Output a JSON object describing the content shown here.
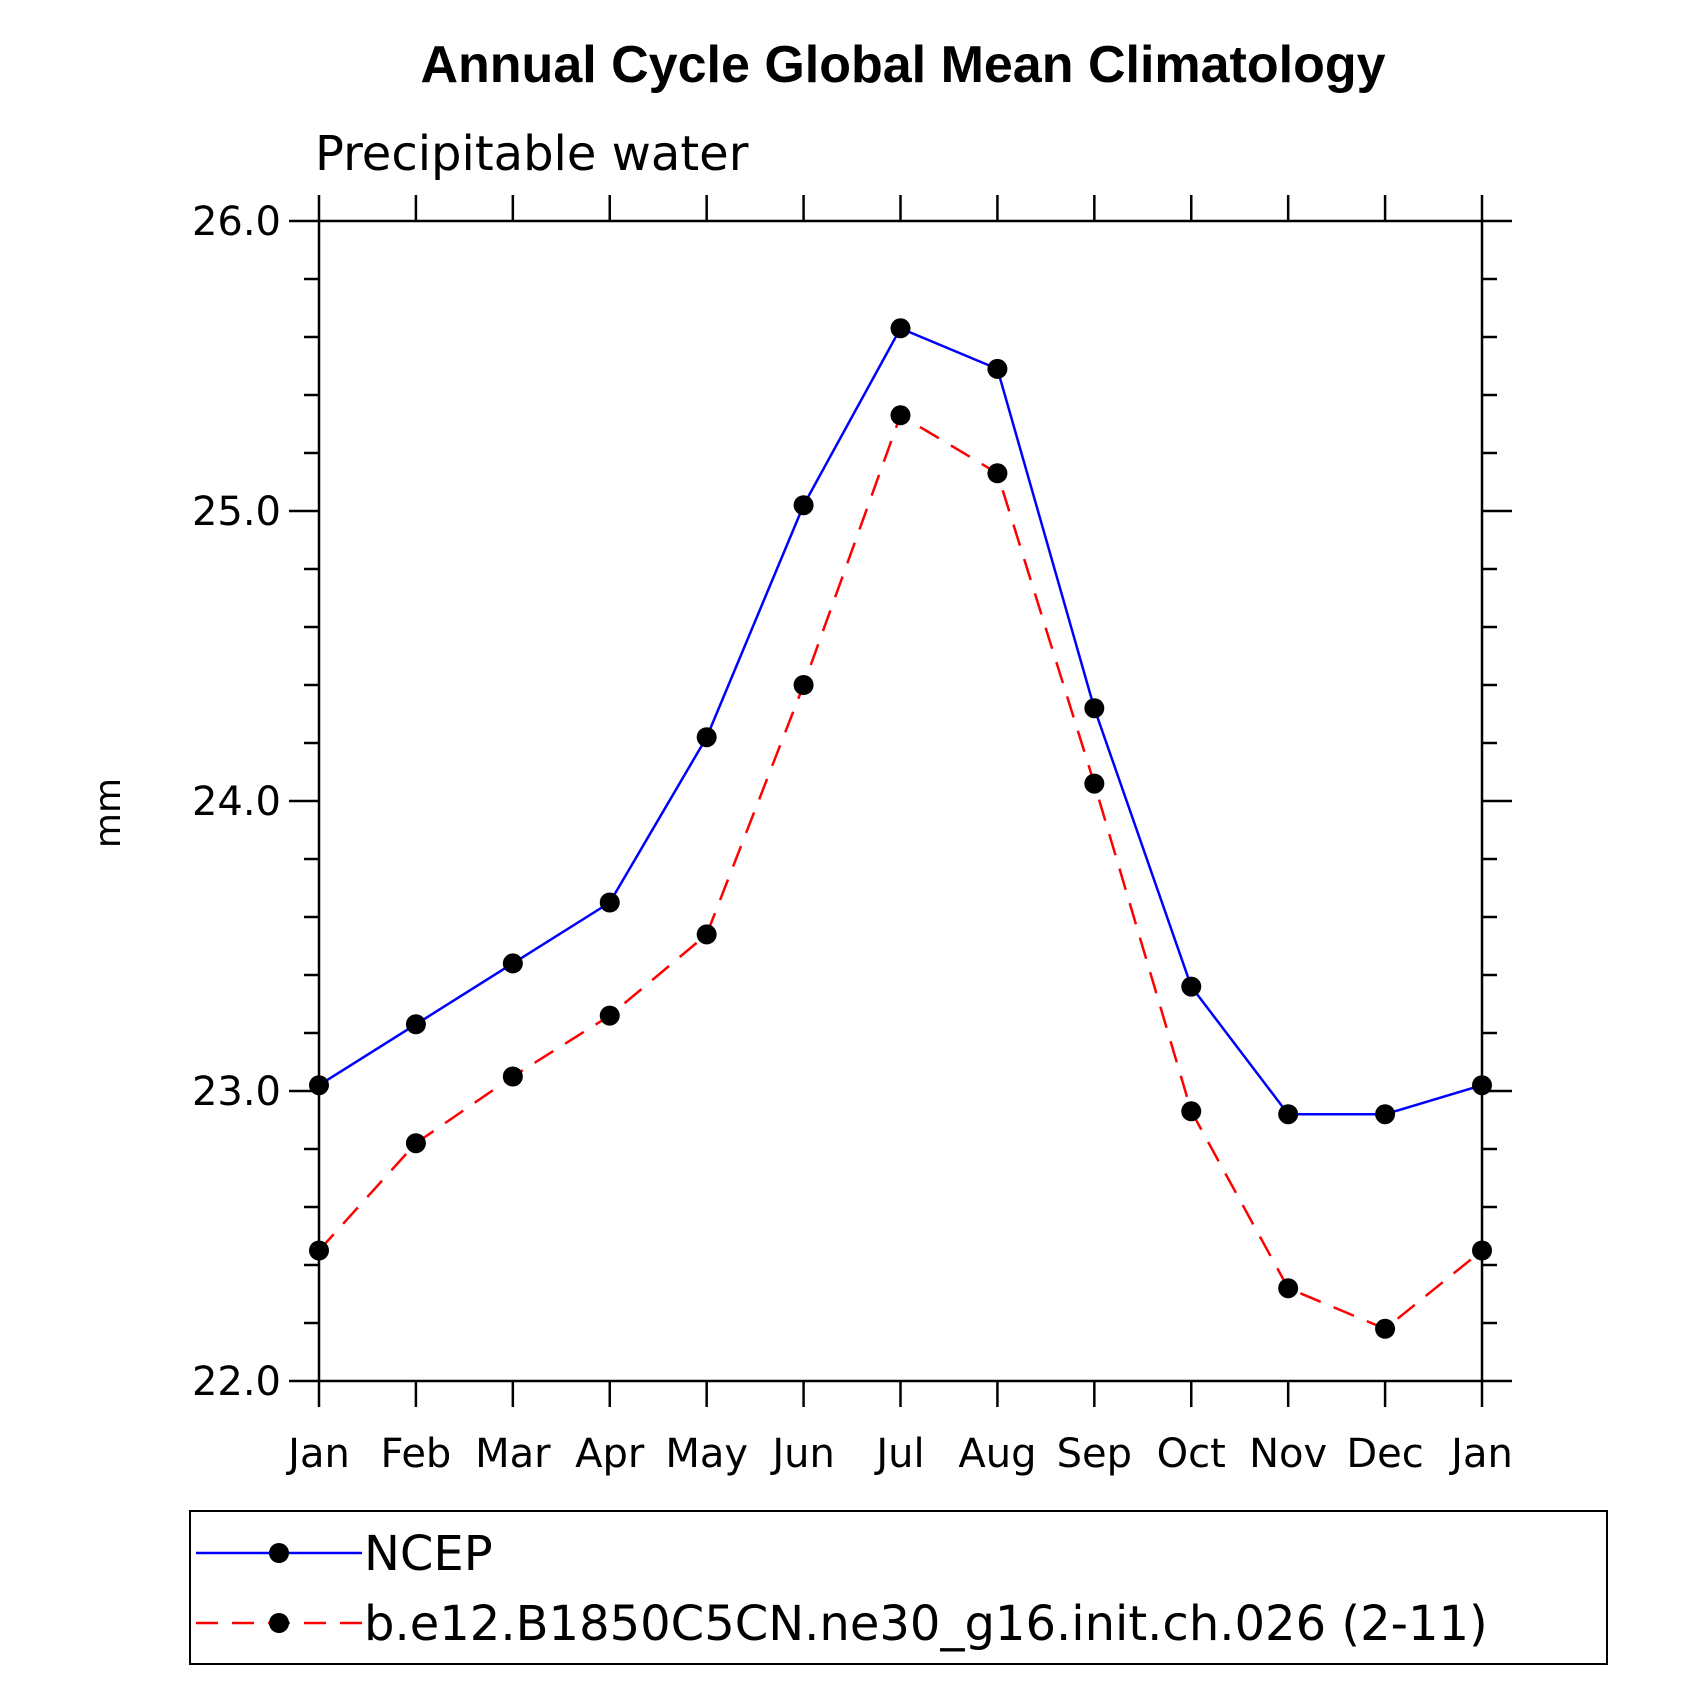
{
  "chart_data": {
    "type": "line",
    "title": "Annual Cycle Global Mean Climatology",
    "subtitle": "Precipitable water",
    "xlabel": "",
    "ylabel": "mm",
    "categories": [
      "Jan",
      "Feb",
      "Mar",
      "Apr",
      "May",
      "Jun",
      "Jul",
      "Aug",
      "Sep",
      "Oct",
      "Nov",
      "Dec",
      "Jan"
    ],
    "ylim": [
      22.0,
      26.0
    ],
    "yticks": [
      "22.0",
      "23.0",
      "24.0",
      "25.0",
      "26.0"
    ],
    "legend_position": "bottom",
    "grid": false,
    "series": [
      {
        "name": "NCEP",
        "color": "#0000ff",
        "dash": "solid",
        "values": [
          23.02,
          23.23,
          23.44,
          23.65,
          24.22,
          25.02,
          25.63,
          25.49,
          24.32,
          23.36,
          22.92,
          22.92,
          23.02
        ]
      },
      {
        "name": "b.e12.B1850C5CN.ne30_g16.init.ch.026 (2-11)",
        "color": "#ff0000",
        "dash": "dashed",
        "values": [
          22.45,
          22.82,
          23.05,
          23.26,
          23.54,
          24.4,
          25.33,
          25.13,
          24.06,
          22.93,
          22.32,
          22.18,
          22.45
        ]
      }
    ]
  }
}
